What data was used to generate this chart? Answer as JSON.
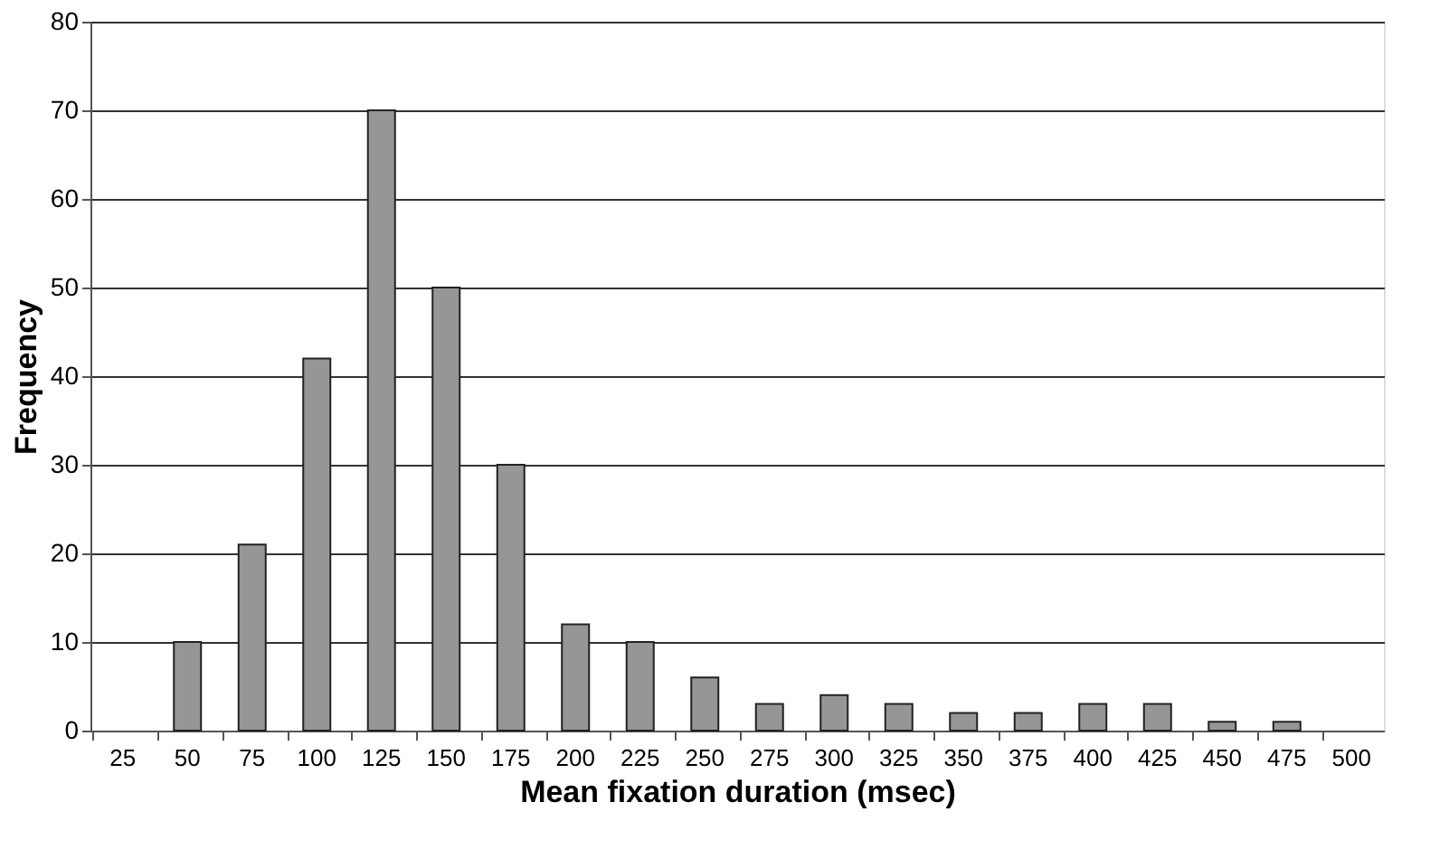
{
  "chart_data": {
    "type": "bar",
    "xlabel": "Mean fixation duration (msec)",
    "ylabel": "Frequency",
    "categories": [
      "25",
      "50",
      "75",
      "100",
      "125",
      "150",
      "175",
      "200",
      "225",
      "250",
      "275",
      "300",
      "325",
      "350",
      "375",
      "400",
      "425",
      "450",
      "475",
      "500"
    ],
    "values": [
      null,
      10,
      21,
      42,
      70,
      50,
      30,
      12,
      10,
      6,
      3,
      4,
      3,
      2,
      2,
      3,
      3,
      1,
      1,
      null
    ],
    "color": "#969696",
    "ylim": [
      0,
      80
    ],
    "yticks": [
      0,
      10,
      20,
      30,
      40,
      50,
      60,
      70,
      80
    ],
    "grid": "y"
  }
}
